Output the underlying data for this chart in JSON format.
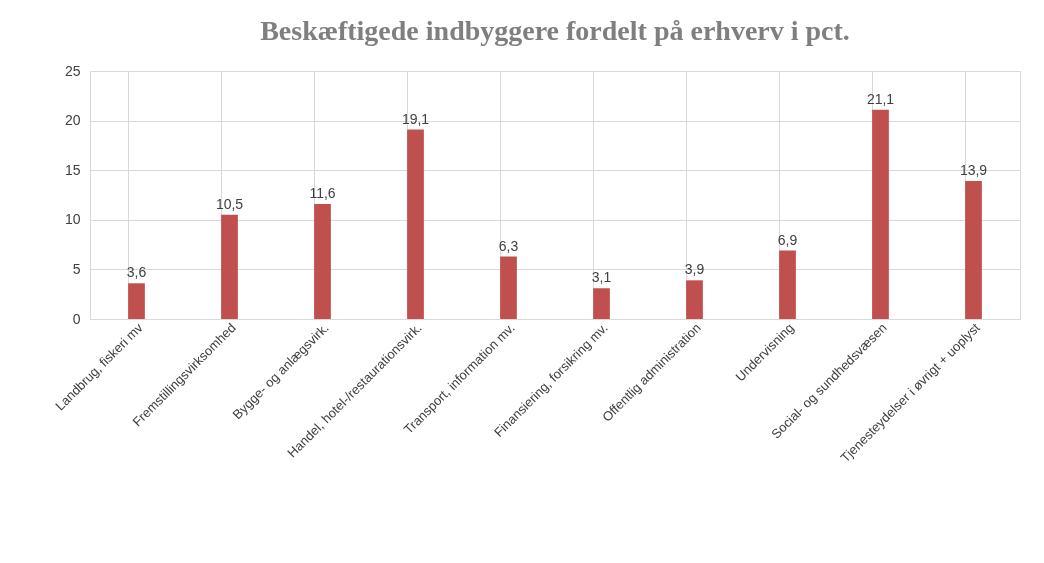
{
  "chart_data": {
    "type": "bar",
    "title": "Beskæftigede indbyggere fordelt på erhverv i pct.",
    "categories": [
      "Landbrug, fiskeri  mv",
      "Fremstillingsvirksomhed",
      "Bygge- og anlægsvirk.",
      "Handel, hotel-/restaurationsvirk.",
      "Transport, information mv.",
      "Finansiering, forsikring mv.",
      "Offentlig administration",
      "Undervisning",
      "Social- og sundhedsvæsen",
      "Tjenesteydelser i øvrigt + uoplyst"
    ],
    "values": [
      3.6,
      10.5,
      11.6,
      19.1,
      6.3,
      3.1,
      3.9,
      6.9,
      21.1,
      13.9
    ],
    "value_labels": [
      "3,6",
      "10,5",
      "11,6",
      "19,1",
      "6,3",
      "3,1",
      "3,9",
      "6,9",
      "21,1",
      "13,9"
    ],
    "color": "#c0504d",
    "ylim": [
      0,
      25
    ],
    "yticks": [
      0,
      5,
      10,
      15,
      20,
      25
    ],
    "grid": true
  }
}
